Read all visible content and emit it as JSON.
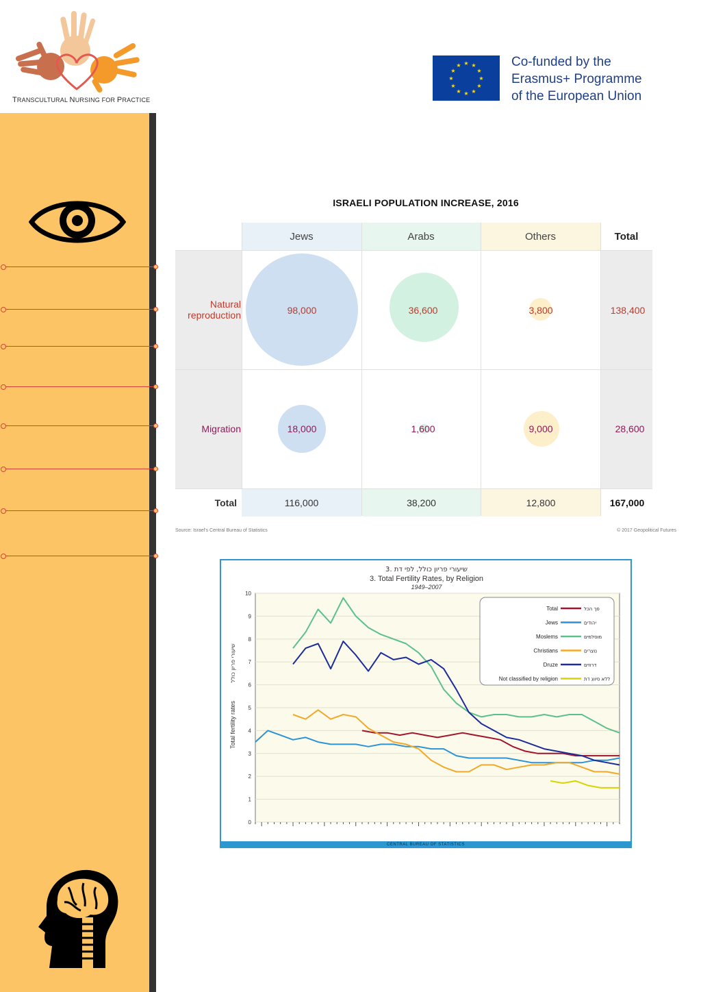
{
  "logo": {
    "tagline_parts": [
      "T",
      "RANSCULTURAL ",
      "N",
      "URSING FOR ",
      "P",
      "RACTICE"
    ]
  },
  "eu": {
    "line1": "Co-funded by the",
    "line2": "Erasmus+ Programme",
    "line3": "of the European Union"
  },
  "table": {
    "title": "ISRAELI POPULATION INCREASE, 2016",
    "columns": [
      "Jews",
      "Arabs",
      "Others",
      "Total"
    ],
    "rows": [
      {
        "label_line1": "Natural",
        "label_line2": "reproduction",
        "values": [
          "98,000",
          "36,600",
          "3,800"
        ],
        "total": "138,400"
      },
      {
        "label": "Migration",
        "values": [
          "18,000",
          "1,600",
          "9,000"
        ],
        "total": "28,600"
      }
    ],
    "totals": {
      "label": "Total",
      "values": [
        "116,000",
        "38,200",
        "12,800"
      ],
      "grand_total": "167,000"
    },
    "source": "Source: Israel's Central Bureau of Statistics",
    "copyright": "© 2017 Geopolitical Futures",
    "colors": {
      "jews": "#cddff0",
      "arabs": "#d2f1e1",
      "others": "#fcefc9",
      "natural": "#c0392b",
      "migration": "#8e1a57"
    }
  },
  "chart_data": {
    "type": "line",
    "title_hebrew": "3. שיעורי פריון כולל, לפי דת",
    "title": "3. Total Fertility Rates, by Religion",
    "subtitle": "1949–2007",
    "ylabel": "Total fertility rates",
    "ylabel_hebrew": "שיעורי פריון כולל",
    "xlim": [
      1949,
      2007
    ],
    "ylim": [
      0,
      10
    ],
    "yticks": [
      "0",
      "1",
      "2",
      "3",
      "4",
      "5",
      "6",
      "7",
      "8",
      "9",
      "10"
    ],
    "footer": "CENTRAL BUREAU OF STATISTICS",
    "series": [
      {
        "name": "Total",
        "name_hebrew": "סך הכל",
        "color": "#a3142a",
        "x": [
          1966,
          1968,
          1970,
          1972,
          1974,
          1976,
          1978,
          1980,
          1982,
          1984,
          1986,
          1988,
          1990,
          1992,
          1994,
          1996,
          1998,
          2000,
          2002,
          2004,
          2007
        ],
        "values": [
          4.0,
          3.9,
          3.9,
          3.8,
          3.9,
          3.8,
          3.7,
          3.8,
          3.9,
          3.8,
          3.7,
          3.6,
          3.3,
          3.1,
          3.0,
          3.0,
          3.0,
          2.9,
          2.9,
          2.9,
          2.9
        ]
      },
      {
        "name": "Jews",
        "name_hebrew": "יהודים",
        "color": "#2c93d6",
        "x": [
          1949,
          1951,
          1953,
          1955,
          1957,
          1959,
          1961,
          1963,
          1965,
          1967,
          1969,
          1971,
          1973,
          1975,
          1977,
          1979,
          1981,
          1983,
          1985,
          1987,
          1989,
          1991,
          1993,
          1995,
          1997,
          1999,
          2001,
          2003,
          2005,
          2007
        ],
        "values": [
          3.5,
          4.0,
          3.8,
          3.6,
          3.7,
          3.5,
          3.4,
          3.4,
          3.4,
          3.3,
          3.4,
          3.4,
          3.3,
          3.3,
          3.2,
          3.2,
          2.9,
          2.8,
          2.8,
          2.8,
          2.8,
          2.7,
          2.6,
          2.6,
          2.6,
          2.6,
          2.6,
          2.7,
          2.7,
          2.8
        ]
      },
      {
        "name": "Moslems",
        "name_hebrew": "מוסלמים",
        "color": "#5cc08a",
        "x": [
          1955,
          1957,
          1959,
          1961,
          1963,
          1965,
          1967,
          1969,
          1971,
          1973,
          1975,
          1977,
          1979,
          1981,
          1983,
          1985,
          1987,
          1989,
          1991,
          1993,
          1995,
          1997,
          1999,
          2001,
          2003,
          2005,
          2007
        ],
        "values": [
          7.6,
          8.3,
          9.3,
          8.7,
          9.8,
          9.0,
          8.5,
          8.2,
          8.0,
          7.8,
          7.4,
          6.8,
          5.8,
          5.2,
          4.8,
          4.6,
          4.7,
          4.7,
          4.6,
          4.6,
          4.7,
          4.6,
          4.7,
          4.7,
          4.4,
          4.1,
          3.9
        ]
      },
      {
        "name": "Christians",
        "name_hebrew": "נוצרים",
        "color": "#f2a82a",
        "x": [
          1955,
          1957,
          1959,
          1961,
          1963,
          1965,
          1967,
          1969,
          1971,
          1973,
          1975,
          1977,
          1979,
          1981,
          1983,
          1985,
          1987,
          1989,
          1991,
          1993,
          1995,
          1997,
          1999,
          2001,
          2003,
          2005,
          2007
        ],
        "values": [
          4.7,
          4.5,
          4.9,
          4.5,
          4.7,
          4.6,
          4.1,
          3.8,
          3.5,
          3.4,
          3.2,
          2.7,
          2.4,
          2.2,
          2.2,
          2.5,
          2.5,
          2.3,
          2.4,
          2.5,
          2.5,
          2.6,
          2.6,
          2.4,
          2.2,
          2.2,
          2.1
        ]
      },
      {
        "name": "Druze",
        "name_hebrew": "דרוזים",
        "color": "#1c2c9c",
        "x": [
          1955,
          1957,
          1959,
          1961,
          1963,
          1965,
          1967,
          1969,
          1971,
          1973,
          1975,
          1977,
          1979,
          1981,
          1983,
          1985,
          1987,
          1989,
          1991,
          1993,
          1995,
          1997,
          1999,
          2001,
          2003,
          2005,
          2007
        ],
        "values": [
          6.9,
          7.6,
          7.8,
          6.7,
          7.9,
          7.3,
          6.6,
          7.4,
          7.1,
          7.2,
          6.9,
          7.1,
          6.7,
          5.8,
          4.8,
          4.3,
          4.0,
          3.7,
          3.6,
          3.4,
          3.2,
          3.1,
          3.0,
          2.9,
          2.7,
          2.6,
          2.5
        ]
      },
      {
        "name": "Not classified by religion",
        "name_hebrew": "ללא סיווג דת",
        "color": "#d8d400",
        "x": [
          1996,
          1998,
          2000,
          2002,
          2004,
          2005,
          2007
        ],
        "values": [
          1.8,
          1.7,
          1.8,
          1.6,
          1.5,
          1.5,
          1.5
        ]
      }
    ]
  }
}
